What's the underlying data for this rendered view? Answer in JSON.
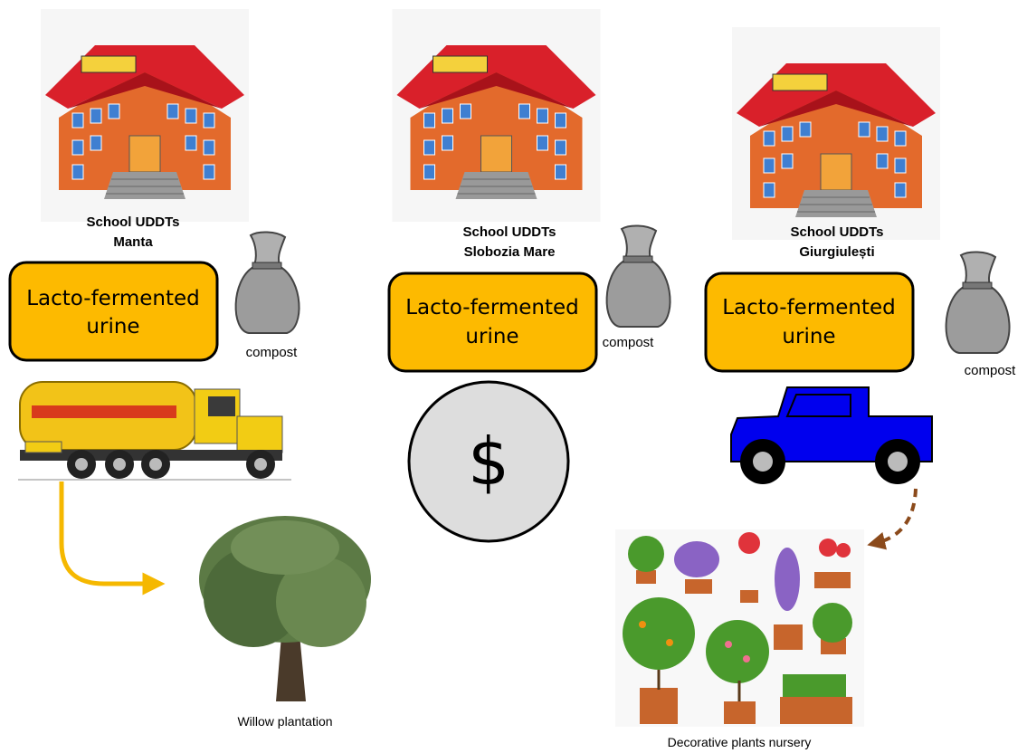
{
  "columns": [
    {
      "school": [
        "School UDDTs",
        "Manta"
      ],
      "box": [
        "Lacto-fermented",
        "urine"
      ],
      "compost": "compost"
    },
    {
      "school": [
        "School UDDTs",
        "Slobozia Mare"
      ],
      "box": [
        "Lacto-fermented",
        "urine"
      ],
      "compost": "compost"
    },
    {
      "school": [
        "School UDDTs",
        "Giurgiulești"
      ],
      "box": [
        "Lacto-fermented",
        "urine"
      ],
      "compost": "compost"
    }
  ],
  "currency": "$",
  "destinations": [
    "Willow plantation",
    "Decorative plants nursery"
  ]
}
